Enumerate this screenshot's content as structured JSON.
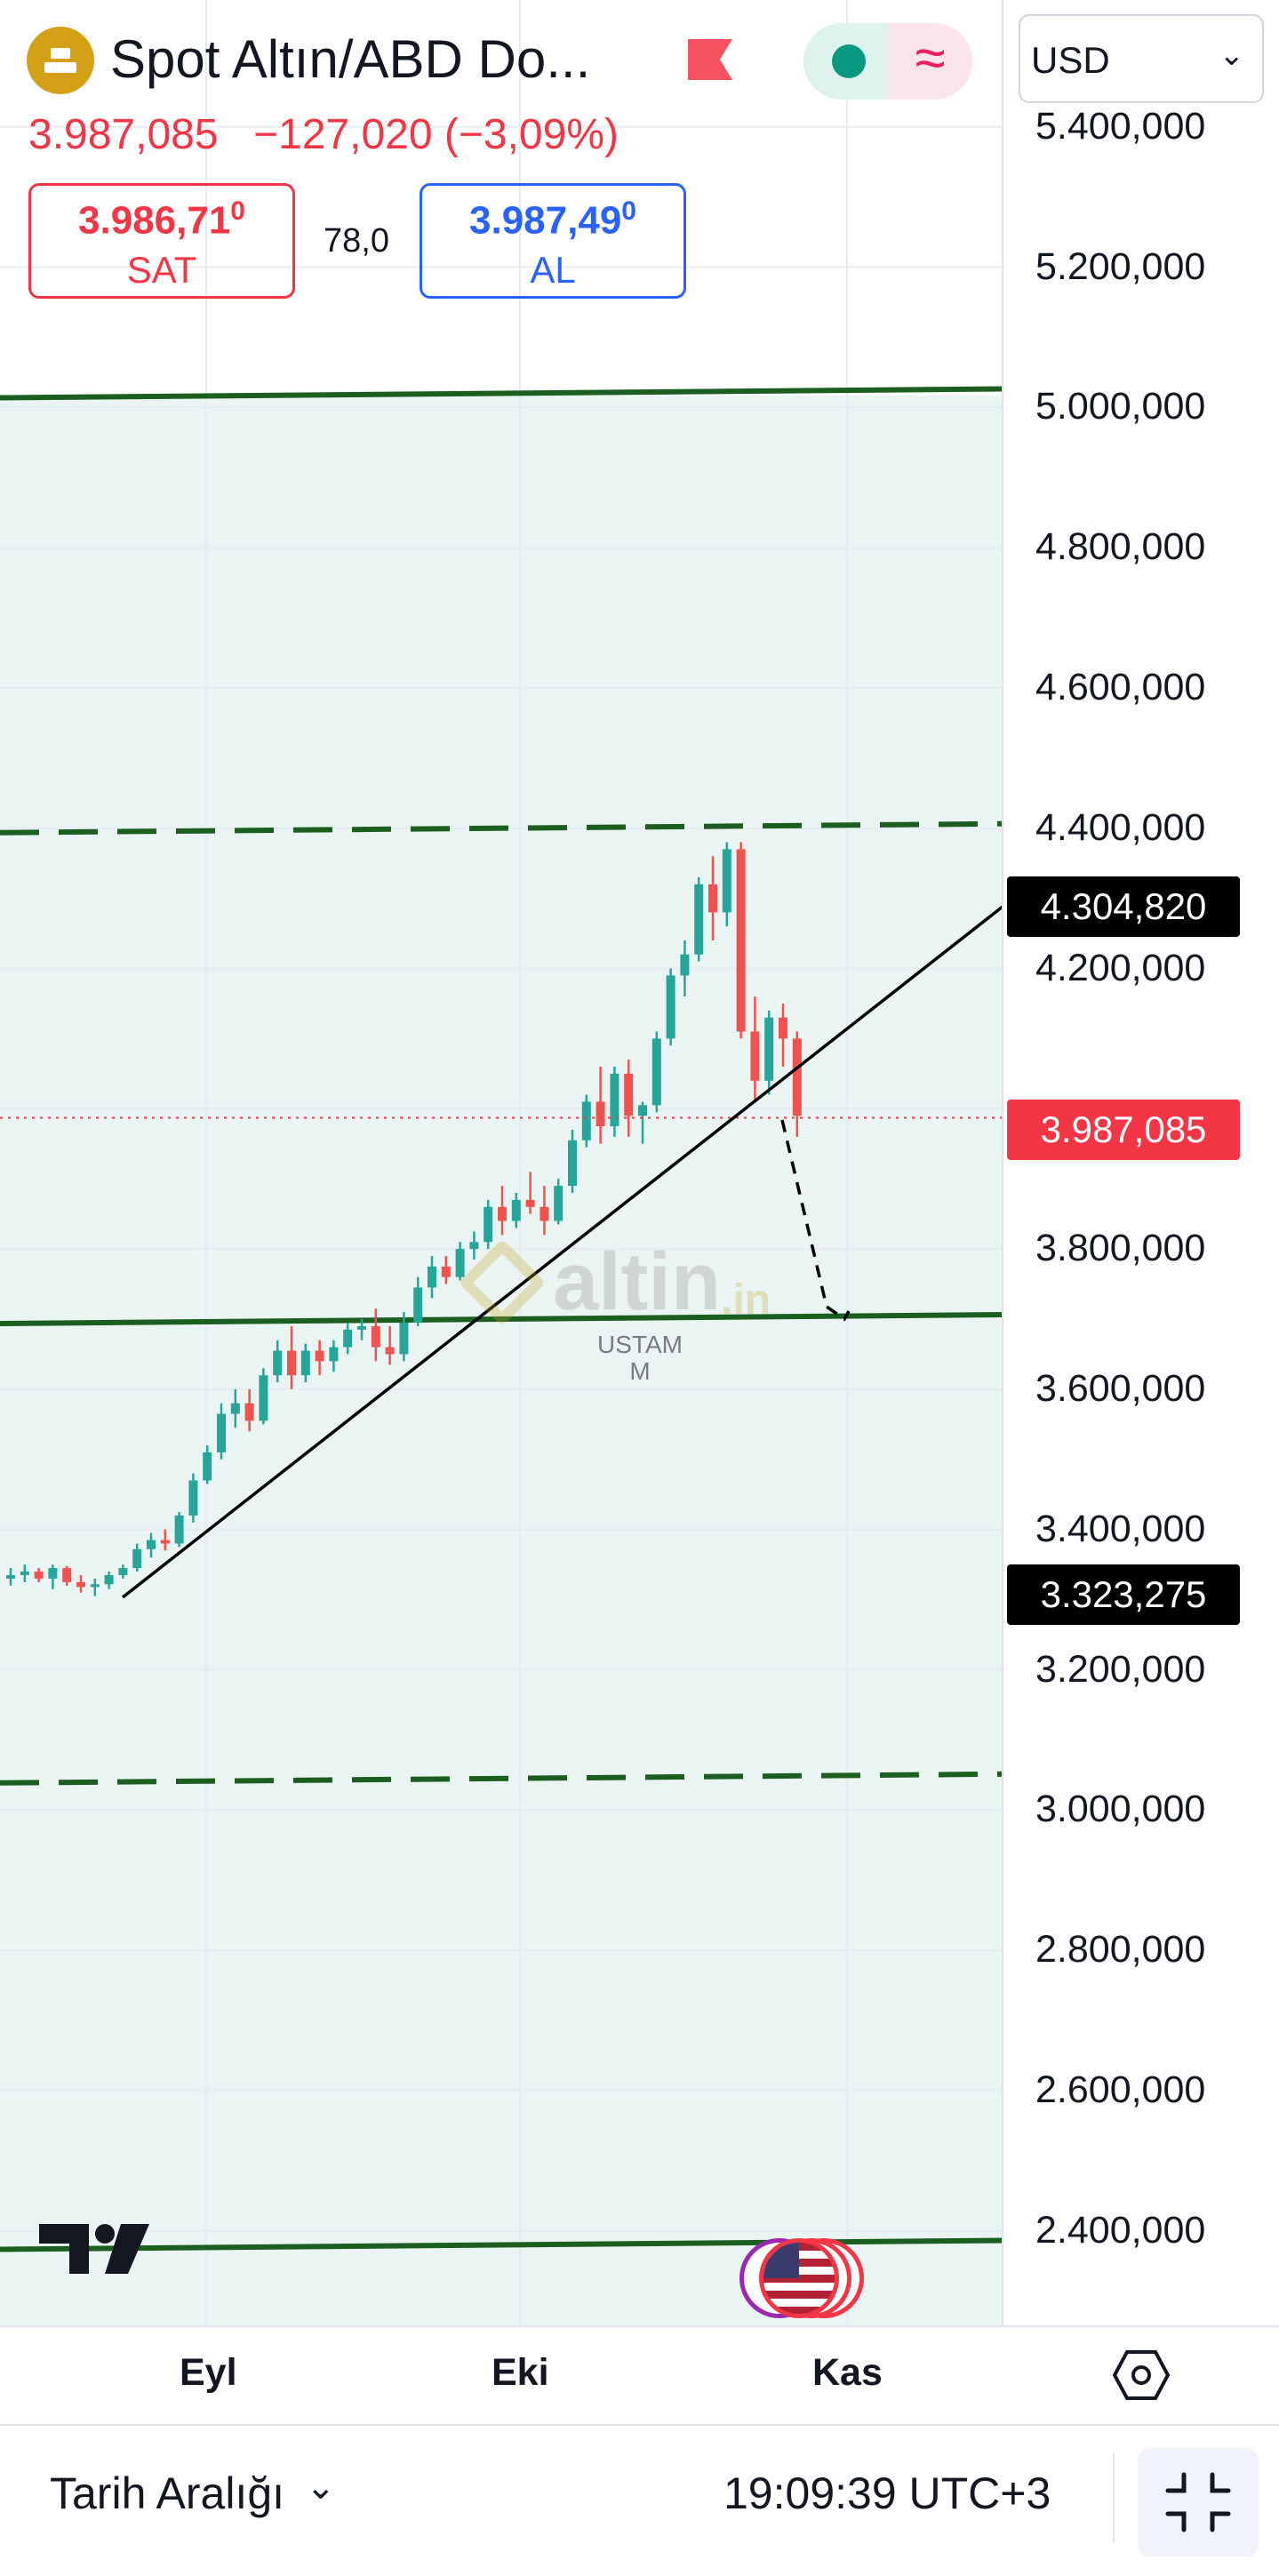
{
  "header": {
    "symbol_title": "Spot Altın/ABD Do...",
    "last_price": "3.987,085",
    "change": "−127,020 (−3,09%)",
    "sell": {
      "price_main": "3.986,71",
      "price_sup": "0",
      "label": "SAT"
    },
    "spread": "78,0",
    "buy": {
      "price_main": "3.987,49",
      "price_sup": "0",
      "label": "AL"
    },
    "currency_select": "USD"
  },
  "price_scale": {
    "ticks": [
      "5.400,000",
      "5.200,000",
      "5.000,000",
      "4.800,000",
      "4.600,000",
      "4.400,000",
      "4.200,000",
      "3.800,000",
      "3.600,000",
      "3.400,000",
      "3.200,000",
      "3.000,000",
      "2.800,000",
      "2.600,000",
      "2.400,000"
    ],
    "tags": {
      "upper_line": "4.304,820",
      "last": "3.987,085",
      "lower_line": "3.323,275"
    }
  },
  "time_scale": {
    "labels": [
      "Eyl",
      "Eki",
      "Kas"
    ]
  },
  "watermark": {
    "brand": "altin",
    "suffix": ".in",
    "line1": "USTAM",
    "line2": "M"
  },
  "footer": {
    "range_label": "Tarih Aralığı",
    "time": "19:09:39 UTC+3"
  },
  "chart_data": {
    "type": "candlestick",
    "ylim": [
      2300,
      5500
    ],
    "up_color": "#26a69a",
    "down_color": "#ef5350",
    "horizontal_lines": [
      5020,
      4400,
      3700,
      3045,
      2380
    ],
    "candles": [
      [
        3330,
        3345,
        3320,
        3335
      ],
      [
        3335,
        3350,
        3325,
        3340
      ],
      [
        3340,
        3345,
        3325,
        3330
      ],
      [
        3330,
        3350,
        3315,
        3345
      ],
      [
        3345,
        3348,
        3320,
        3325
      ],
      [
        3325,
        3335,
        3310,
        3318
      ],
      [
        3318,
        3330,
        3305,
        3322
      ],
      [
        3322,
        3340,
        3315,
        3335
      ],
      [
        3335,
        3350,
        3330,
        3345
      ],
      [
        3345,
        3380,
        3340,
        3372
      ],
      [
        3372,
        3395,
        3360,
        3385
      ],
      [
        3385,
        3400,
        3370,
        3380
      ],
      [
        3380,
        3425,
        3375,
        3420
      ],
      [
        3420,
        3480,
        3410,
        3470
      ],
      [
        3470,
        3520,
        3465,
        3510
      ],
      [
        3510,
        3580,
        3500,
        3565
      ],
      [
        3565,
        3600,
        3545,
        3580
      ],
      [
        3580,
        3600,
        3540,
        3555
      ],
      [
        3555,
        3630,
        3550,
        3620
      ],
      [
        3620,
        3670,
        3610,
        3655
      ],
      [
        3655,
        3690,
        3600,
        3620
      ],
      [
        3620,
        3665,
        3610,
        3655
      ],
      [
        3655,
        3670,
        3620,
        3640
      ],
      [
        3640,
        3670,
        3625,
        3660
      ],
      [
        3660,
        3695,
        3650,
        3685
      ],
      [
        3685,
        3700,
        3670,
        3690
      ],
      [
        3690,
        3715,
        3640,
        3660
      ],
      [
        3660,
        3690,
        3635,
        3650
      ],
      [
        3650,
        3710,
        3640,
        3695
      ],
      [
        3695,
        3760,
        3690,
        3745
      ],
      [
        3745,
        3790,
        3730,
        3775
      ],
      [
        3775,
        3790,
        3750,
        3760
      ],
      [
        3760,
        3810,
        3755,
        3800
      ],
      [
        3800,
        3825,
        3785,
        3810
      ],
      [
        3810,
        3870,
        3800,
        3860
      ],
      [
        3860,
        3890,
        3820,
        3840
      ],
      [
        3840,
        3880,
        3830,
        3870
      ],
      [
        3870,
        3910,
        3850,
        3860
      ],
      [
        3860,
        3890,
        3820,
        3840
      ],
      [
        3840,
        3900,
        3835,
        3890
      ],
      [
        3890,
        3970,
        3880,
        3955
      ],
      [
        3955,
        4020,
        3945,
        4010
      ],
      [
        4010,
        4060,
        3950,
        3975
      ],
      [
        3975,
        4060,
        3960,
        4050
      ],
      [
        4050,
        4070,
        3960,
        3990
      ],
      [
        3990,
        4010,
        3950,
        4005
      ],
      [
        4005,
        4110,
        3995,
        4100
      ],
      [
        4100,
        4200,
        4090,
        4190
      ],
      [
        4190,
        4240,
        4160,
        4220
      ],
      [
        4220,
        4330,
        4210,
        4320
      ],
      [
        4320,
        4360,
        4240,
        4280
      ],
      [
        4280,
        4380,
        4260,
        4370
      ],
      [
        4370,
        4380,
        4100,
        4110
      ],
      [
        4110,
        4160,
        4010,
        4040
      ],
      [
        4040,
        4140,
        4020,
        4130
      ],
      [
        4130,
        4150,
        4060,
        4100
      ],
      [
        4100,
        4110,
        3960,
        3990
      ]
    ]
  }
}
